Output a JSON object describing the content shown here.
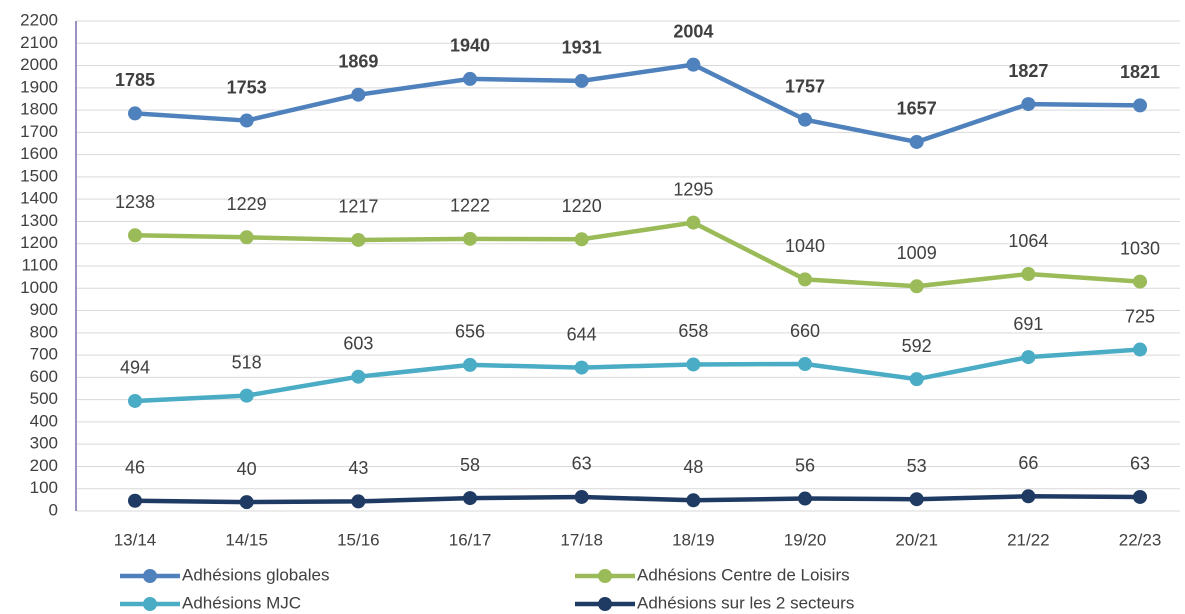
{
  "chart_data": {
    "type": "line",
    "categories": [
      "13/14",
      "14/15",
      "15/16",
      "16/17",
      "17/18",
      "18/19",
      "19/20",
      "20/21",
      "21/22",
      "22/23"
    ],
    "series": [
      {
        "name": "Adhésions globales",
        "color": "#4f81bd",
        "values": [
          1785,
          1753,
          1869,
          1940,
          1931,
          2004,
          1757,
          1657,
          1827,
          1821
        ]
      },
      {
        "name": "Adhésions Centre de Loisirs",
        "color": "#9bbb59",
        "values": [
          1238,
          1229,
          1217,
          1222,
          1220,
          1295,
          1040,
          1009,
          1064,
          1030
        ]
      },
      {
        "name": "Adhésions MJC",
        "color": "#4bacc6",
        "values": [
          494,
          518,
          603,
          656,
          644,
          658,
          660,
          592,
          691,
          725
        ]
      },
      {
        "name": "Adhésions sur les 2 secteurs",
        "color": "#1f3b63",
        "values": [
          46,
          40,
          43,
          58,
          63,
          48,
          56,
          53,
          66,
          63
        ]
      }
    ],
    "ylim": [
      0,
      2200
    ],
    "yticks": [
      0,
      100,
      200,
      300,
      400,
      500,
      600,
      700,
      800,
      900,
      1000,
      1100,
      1200,
      1300,
      1400,
      1500,
      1600,
      1700,
      1800,
      1900,
      2000,
      2100,
      2200
    ],
    "grid": true,
    "legend": "bottom"
  }
}
